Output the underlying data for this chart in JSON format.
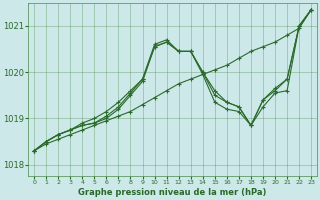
{
  "title": "Graphe pression niveau de la mer (hPa)",
  "bg_color": "#cce8e8",
  "grid_color": "#4a8a4a",
  "line_color": "#2a6a2a",
  "xlim": [
    -0.5,
    23.5
  ],
  "ylim": [
    1017.75,
    1021.5
  ],
  "yticks": [
    1018,
    1019,
    1020,
    1021
  ],
  "xticks": [
    0,
    1,
    2,
    3,
    4,
    5,
    6,
    7,
    8,
    9,
    10,
    11,
    12,
    13,
    14,
    15,
    16,
    17,
    18,
    19,
    20,
    21,
    22,
    23
  ],
  "lines": [
    {
      "x": [
        0,
        1,
        2,
        3,
        4,
        5,
        6,
        7,
        8,
        9,
        10,
        11,
        12,
        13,
        14,
        15,
        16,
        17,
        18,
        19,
        20,
        21,
        22,
        23
      ],
      "y": [
        1018.3,
        1018.45,
        1018.55,
        1018.65,
        1018.75,
        1018.85,
        1018.95,
        1019.05,
        1019.15,
        1019.3,
        1019.45,
        1019.6,
        1019.75,
        1019.85,
        1019.95,
        1020.05,
        1020.15,
        1020.3,
        1020.45,
        1020.55,
        1020.65,
        1020.8,
        1020.95,
        1021.35
      ]
    },
    {
      "x": [
        0,
        1,
        2,
        3,
        4,
        5,
        6,
        7,
        8,
        9,
        10,
        11,
        12,
        13,
        14,
        15,
        16,
        17,
        18,
        19,
        20,
        21,
        22,
        23
      ],
      "y": [
        1018.3,
        1018.5,
        1018.65,
        1018.75,
        1018.85,
        1018.9,
        1019.0,
        1019.2,
        1019.5,
        1019.8,
        1020.55,
        1020.65,
        1020.45,
        1020.45,
        1020.0,
        1019.5,
        1019.35,
        1019.25,
        1018.85,
        1019.4,
        1019.6,
        1019.85,
        1021.0,
        1021.35
      ]
    },
    {
      "x": [
        0,
        1,
        2,
        3,
        4,
        5,
        6,
        7,
        8,
        9,
        10,
        11,
        12,
        13,
        14,
        15,
        16,
        17,
        18,
        19,
        20,
        21,
        22,
        23
      ],
      "y": [
        1018.3,
        1018.5,
        1018.65,
        1018.75,
        1018.85,
        1018.9,
        1019.05,
        1019.25,
        1019.55,
        1019.85,
        1020.55,
        1020.65,
        1020.45,
        1020.45,
        1019.95,
        1019.35,
        1019.2,
        1019.15,
        1018.85,
        1019.25,
        1019.55,
        1019.6,
        1021.0,
        1021.35
      ]
    },
    {
      "x": [
        0,
        1,
        2,
        3,
        4,
        5,
        6,
        7,
        8,
        9,
        10,
        11,
        12,
        13,
        14,
        15,
        16,
        17,
        18,
        19,
        20,
        21,
        22,
        23
      ],
      "y": [
        1018.3,
        1018.5,
        1018.65,
        1018.75,
        1018.9,
        1019.0,
        1019.15,
        1019.35,
        1019.6,
        1019.85,
        1020.6,
        1020.7,
        1020.45,
        1020.45,
        1020.0,
        1019.6,
        1019.35,
        1019.25,
        1018.85,
        1019.4,
        1019.65,
        1019.85,
        1021.0,
        1021.35
      ]
    }
  ]
}
